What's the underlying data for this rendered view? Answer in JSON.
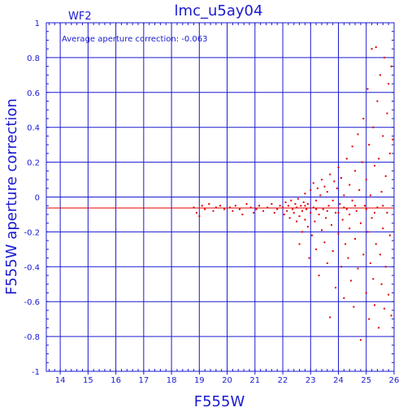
{
  "chart_data": {
    "type": "scatter",
    "title": "lmc_u5ay04",
    "panel_label": "WF2",
    "annotation": "Average aperture correction: -0.063",
    "xlabel": "F555W",
    "ylabel": "F555W aperture correction",
    "xlim": [
      13.5,
      26
    ],
    "ylim": [
      -1,
      1
    ],
    "x_ticks": [
      14,
      15,
      16,
      17,
      18,
      19,
      20,
      21,
      22,
      23,
      24,
      25,
      26
    ],
    "y_ticks": [
      -1,
      -0.8,
      -0.6,
      -0.4,
      -0.2,
      0,
      0.2,
      0.4,
      0.6,
      0.8,
      1
    ],
    "y_tick_labels": [
      "-1",
      "-0.8",
      "-0.6",
      "-0.4",
      "-0.2",
      "0",
      "0.2",
      "0.4",
      "0.6",
      "0.8",
      "1"
    ],
    "grid": true,
    "reference_line": {
      "y": -0.063,
      "color": "#e00000"
    },
    "colors": {
      "axes": "#1a1ad0",
      "points": "#e00000",
      "background": "#ffffff"
    },
    "series": [
      {
        "color": "#e00000",
        "points": [
          [
            18.8,
            -0.06
          ],
          [
            18.9,
            -0.09
          ],
          [
            19.0,
            -0.11
          ],
          [
            19.1,
            -0.05
          ],
          [
            19.2,
            -0.07
          ],
          [
            19.35,
            -0.04
          ],
          [
            19.5,
            -0.08
          ],
          [
            19.6,
            -0.06
          ],
          [
            19.75,
            -0.05
          ],
          [
            19.9,
            -0.07
          ],
          [
            20.1,
            -0.06
          ],
          [
            20.2,
            -0.08
          ],
          [
            20.3,
            -0.05
          ],
          [
            20.45,
            -0.07
          ],
          [
            20.55,
            -0.1
          ],
          [
            20.7,
            -0.04
          ],
          [
            20.85,
            -0.06
          ],
          [
            20.95,
            -0.09
          ],
          [
            21.05,
            -0.07
          ],
          [
            21.15,
            -0.05
          ],
          [
            21.3,
            -0.08
          ],
          [
            21.45,
            -0.06
          ],
          [
            21.6,
            -0.04
          ],
          [
            21.7,
            -0.09
          ],
          [
            21.8,
            -0.07
          ],
          [
            21.9,
            -0.05
          ],
          [
            22.0,
            -0.06
          ],
          [
            22.05,
            -0.1
          ],
          [
            22.1,
            -0.03
          ],
          [
            22.15,
            -0.08
          ],
          [
            22.2,
            -0.05
          ],
          [
            22.25,
            -0.12
          ],
          [
            22.3,
            -0.02
          ],
          [
            22.35,
            -0.07
          ],
          [
            22.4,
            -0.09
          ],
          [
            22.45,
            -0.04
          ],
          [
            22.5,
            -0.14
          ],
          [
            22.5,
            -0.06
          ],
          [
            22.55,
            -0.01
          ],
          [
            22.6,
            -0.11
          ],
          [
            22.6,
            -0.27
          ],
          [
            22.65,
            -0.05
          ],
          [
            22.7,
            -0.08
          ],
          [
            22.7,
            -0.2
          ],
          [
            22.75,
            -0.03
          ],
          [
            22.8,
            -0.13
          ],
          [
            22.8,
            0.02
          ],
          [
            22.85,
            -0.07
          ],
          [
            22.9,
            -0.17
          ],
          [
            22.9,
            -0.04
          ],
          [
            22.95,
            -0.35
          ],
          [
            23.0,
            -0.09
          ],
          [
            23.0,
            0.04
          ],
          [
            23.05,
            -0.22
          ],
          [
            23.1,
            -0.06
          ],
          [
            23.1,
            0.08
          ],
          [
            23.15,
            -0.14
          ],
          [
            23.2,
            -0.3
          ],
          [
            23.2,
            -0.02
          ],
          [
            23.25,
            0.05
          ],
          [
            23.3,
            -0.1
          ],
          [
            23.3,
            -0.45
          ],
          [
            23.35,
            0.01
          ],
          [
            23.4,
            -0.19
          ],
          [
            23.4,
            0.1
          ],
          [
            23.45,
            -0.07
          ],
          [
            23.5,
            -0.26
          ],
          [
            23.5,
            0.06
          ],
          [
            23.55,
            -0.12
          ],
          [
            23.6,
            -0.38
          ],
          [
            23.6,
            0.03
          ],
          [
            23.65,
            -0.05
          ],
          [
            23.7,
            -0.69
          ],
          [
            23.7,
            0.13
          ],
          [
            23.75,
            -0.16
          ],
          [
            23.8,
            -0.02
          ],
          [
            23.8,
            -0.31
          ],
          [
            23.85,
            0.09
          ],
          [
            23.9,
            -0.09
          ],
          [
            23.9,
            -0.52
          ],
          [
            23.95,
            0.05
          ],
          [
            24.0,
            -0.21
          ],
          [
            24.0,
            0.17
          ],
          [
            24.05,
            -0.04
          ],
          [
            24.1,
            -0.4
          ],
          [
            24.1,
            0.11
          ],
          [
            24.15,
            -0.13
          ],
          [
            24.2,
            -0.58
          ],
          [
            24.2,
            0.01
          ],
          [
            24.25,
            -0.27
          ],
          [
            24.3,
            0.22
          ],
          [
            24.3,
            -0.07
          ],
          [
            24.35,
            -0.35
          ],
          [
            24.4,
            0.07
          ],
          [
            24.4,
            -0.18
          ],
          [
            24.45,
            -0.48
          ],
          [
            24.5,
            0.29
          ],
          [
            24.5,
            -0.02
          ],
          [
            24.55,
            -0.63
          ],
          [
            24.6,
            0.15
          ],
          [
            24.6,
            -0.24
          ],
          [
            24.65,
            -0.08
          ],
          [
            24.7,
            -0.41
          ],
          [
            24.7,
            0.36
          ],
          [
            24.75,
            0.04
          ],
          [
            24.8,
            -0.82
          ],
          [
            24.8,
            -0.15
          ],
          [
            24.85,
            0.2
          ],
          [
            24.9,
            -0.33
          ],
          [
            24.9,
            0.45
          ],
          [
            24.95,
            -0.05
          ],
          [
            25.0,
            -0.55
          ],
          [
            25.0,
            0.1
          ],
          [
            25.05,
            0.62
          ],
          [
            25.05,
            -0.2
          ],
          [
            25.1,
            -0.7
          ],
          [
            25.1,
            0.3
          ],
          [
            25.15,
            -0.38
          ],
          [
            25.15,
            0.01
          ],
          [
            25.2,
            0.85
          ],
          [
            25.2,
            -0.12
          ],
          [
            25.25,
            -0.47
          ],
          [
            25.25,
            0.4
          ],
          [
            25.3,
            -0.62
          ],
          [
            25.3,
            0.18
          ],
          [
            25.35,
            0.86
          ],
          [
            25.35,
            -0.27
          ],
          [
            25.4,
            -0.06
          ],
          [
            25.4,
            0.55
          ],
          [
            25.45,
            -0.75
          ],
          [
            25.45,
            0.22
          ],
          [
            25.5,
            -0.33
          ],
          [
            25.5,
            0.7
          ],
          [
            25.55,
            0.03
          ],
          [
            25.55,
            -0.5
          ],
          [
            25.6,
            0.35
          ],
          [
            25.6,
            -0.18
          ],
          [
            25.65,
            0.8
          ],
          [
            25.65,
            -0.64
          ],
          [
            25.7,
            0.12
          ],
          [
            25.7,
            -0.4
          ],
          [
            25.75,
            0.48
          ],
          [
            25.75,
            -0.09
          ],
          [
            25.8,
            0.65
          ],
          [
            25.8,
            -0.56
          ],
          [
            25.85,
            0.25
          ],
          [
            25.85,
            -0.22
          ],
          [
            25.9,
            0.75
          ],
          [
            25.9,
            -0.68
          ],
          [
            25.95,
            0.33
          ],
          [
            24.0,
            -0.09
          ],
          [
            24.2,
            -0.06
          ],
          [
            24.4,
            -0.1
          ],
          [
            24.6,
            -0.05
          ],
          [
            23.6,
            -0.08
          ],
          [
            23.2,
            -0.07
          ],
          [
            22.8,
            -0.05
          ],
          [
            25.0,
            -0.07
          ],
          [
            25.3,
            -0.09
          ],
          [
            25.6,
            -0.05
          ]
        ]
      }
    ]
  }
}
